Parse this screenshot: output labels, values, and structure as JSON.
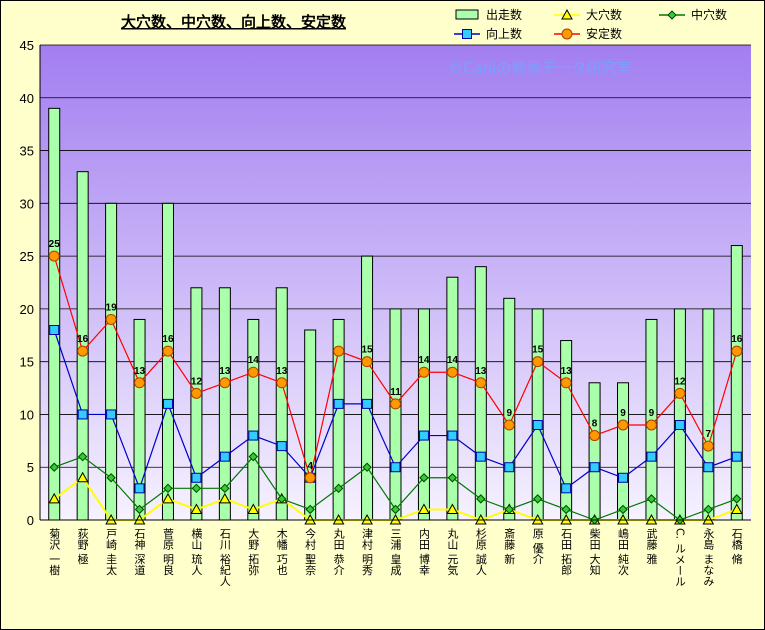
{
  "chart_data": {
    "type": "bar",
    "title": "大穴数、中穴数、向上数、安定数",
    "watermark": "©Caniの競馬データ研究室",
    "ylim": [
      0,
      45
    ],
    "yticks": [
      0,
      5,
      10,
      15,
      20,
      25,
      30,
      35,
      40,
      45
    ],
    "grid": true,
    "legend_position": "top-right",
    "categories": [
      "菊沢 一樹",
      "荻野 極",
      "戸崎 圭太",
      "石神 深道",
      "菅原 明良",
      "横山 琉人",
      "石川 裕紀人",
      "大野 拓弥",
      "木幡 巧也",
      "今村 聖奈",
      "丸田 恭介",
      "津村 明秀",
      "三浦 皇成",
      "内田 博幸",
      "丸山 元気",
      "杉原 誠人",
      "斎藤 新",
      "原 優介",
      "石田 拓郎",
      "柴田 大知",
      "嶋田 純次",
      "武藤 雅",
      "C. ルメール",
      "永島 まなみ",
      "石橋 脩"
    ],
    "series": [
      {
        "name": "出走数",
        "kind": "bar",
        "color": "#aaffaa",
        "values": [
          39,
          33,
          30,
          19,
          30,
          22,
          22,
          19,
          22,
          18,
          19,
          25,
          20,
          20,
          23,
          24,
          21,
          20,
          17,
          13,
          13,
          19,
          20,
          20,
          26
        ]
      },
      {
        "name": "大穴数",
        "kind": "line",
        "color": "#ffff00",
        "marker": "triangle",
        "values": [
          2,
          4,
          0,
          0,
          2,
          1,
          2,
          1,
          2,
          0,
          0,
          0,
          0,
          1,
          1,
          0,
          1,
          0,
          0,
          0,
          0,
          0,
          0,
          0,
          1
        ]
      },
      {
        "name": "中穴数",
        "kind": "line",
        "color": "#007700",
        "marker": "diamond",
        "values": [
          5,
          6,
          4,
          1,
          3,
          3,
          3,
          6,
          2,
          1,
          3,
          5,
          1,
          4,
          4,
          2,
          1,
          2,
          1,
          0,
          1,
          2,
          0,
          1,
          2
        ]
      },
      {
        "name": "向上数",
        "kind": "line",
        "color": "#0000cc",
        "marker": "square",
        "values": [
          18,
          10,
          10,
          3,
          11,
          4,
          6,
          8,
          7,
          4,
          11,
          11,
          5,
          8,
          8,
          6,
          5,
          9,
          3,
          5,
          4,
          6,
          9,
          5,
          6
        ]
      },
      {
        "name": "安定数",
        "kind": "line",
        "color": "#ff0000",
        "marker": "circle",
        "values": [
          25,
          16,
          19,
          13,
          16,
          12,
          13,
          14,
          13,
          4,
          16,
          15,
          11,
          14,
          14,
          13,
          9,
          15,
          13,
          8,
          9,
          9,
          12,
          7,
          16
        ],
        "labels": [
          "25",
          "16",
          "19",
          "13",
          "16",
          "12",
          "13",
          "14",
          "13",
          "4",
          "",
          "15",
          "11",
          "14",
          "14",
          "13",
          "9",
          "15",
          "13",
          "8",
          "9",
          "9",
          "12",
          "7",
          "16"
        ]
      }
    ]
  }
}
